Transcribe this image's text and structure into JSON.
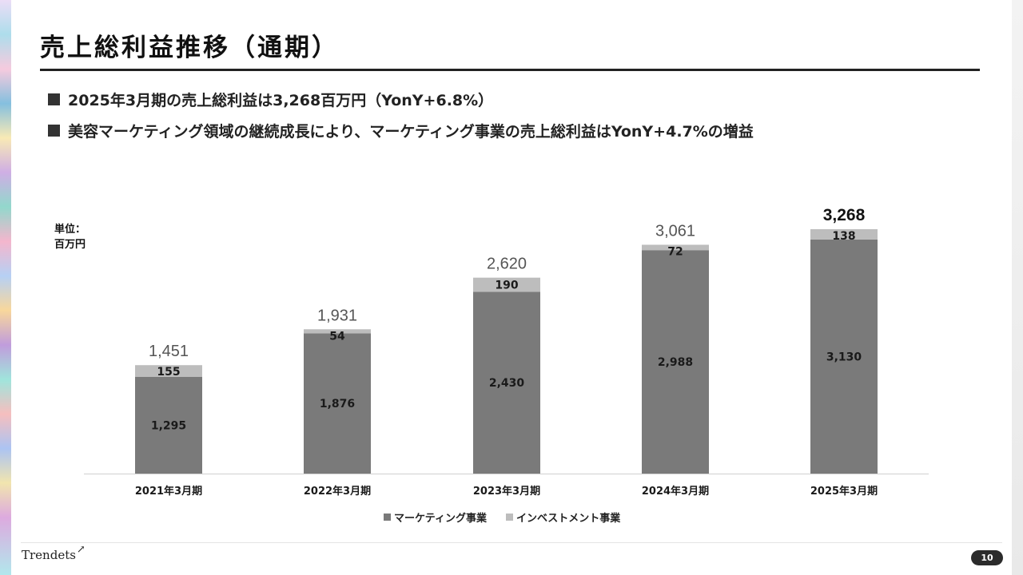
{
  "slide": {
    "title": "売上総利益推移（通期）",
    "bullets": [
      "2025年3月期の売上総利益は3,268百万円（YonY+6.8%）",
      "美容マーケティング領域の継続成長により、マーケティング事業の売上総利益はYonY+4.7%の増益"
    ],
    "unit_line1": "単位：",
    "unit_line2": "百万円",
    "logo_text": "Trendets",
    "page_number": "10"
  },
  "chart_data": {
    "type": "bar",
    "stacked": true,
    "categories": [
      "2021年3月期",
      "2022年3月期",
      "2023年3月期",
      "2024年3月期",
      "2025年3月期"
    ],
    "series": [
      {
        "name": "マーケティング事業",
        "values": [
          1295,
          1876,
          2430,
          2988,
          3130
        ],
        "color": "#7a7a7a",
        "labels": [
          "1,295",
          "1,876",
          "2,430",
          "2,988",
          "3,130"
        ]
      },
      {
        "name": "インベストメント事業",
        "values": [
          155,
          54,
          190,
          72,
          138
        ],
        "color": "#bdbdbd",
        "labels": [
          "155",
          "54",
          "190",
          "72",
          "138"
        ]
      }
    ],
    "totals": [
      1451,
      1931,
      2620,
      3061,
      3268
    ],
    "total_labels": [
      "1,451",
      "1,931",
      "2,620",
      "3,061",
      "3,268"
    ],
    "highlight_last_total": true,
    "ylim": [
      0,
      3300
    ],
    "legend_position": "bottom-center",
    "grid": false
  }
}
